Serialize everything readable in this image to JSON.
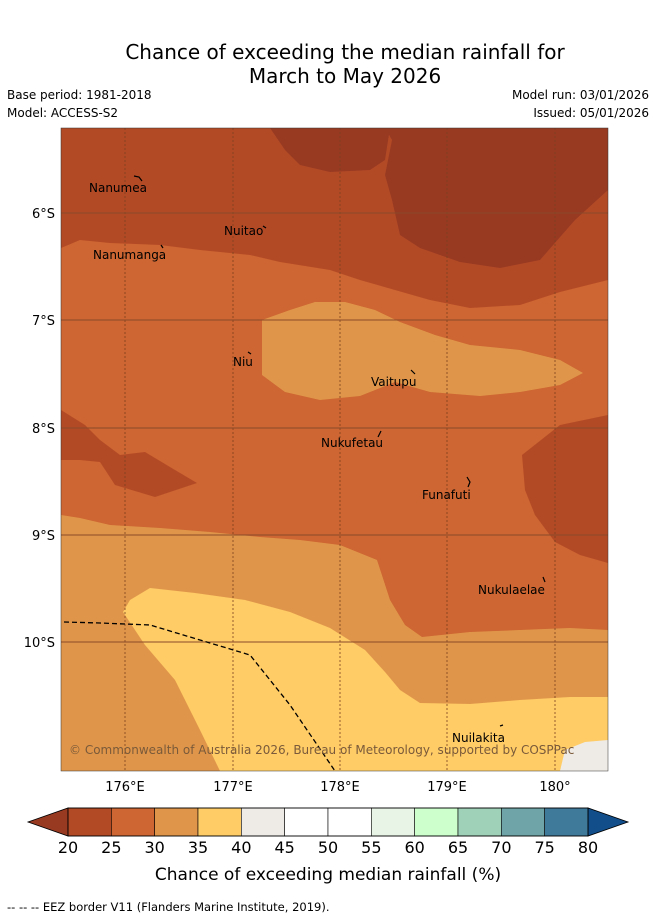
{
  "title": {
    "line1": "Chance of exceeding the median rainfall for",
    "line2": "March to May 2026"
  },
  "meta": {
    "base_period": "Base period: 1981-2018",
    "model": "Model: ACCESS-S2",
    "model_run": "Model run: 03/01/2026",
    "issued": "Issued: 05/01/2026"
  },
  "map": {
    "lat_labels": [
      "6°S",
      "7°S",
      "8°S",
      "9°S",
      "10°S"
    ],
    "lon_labels": [
      "176°E",
      "177°E",
      "178°E",
      "179°E",
      "180°"
    ],
    "places": [
      {
        "name": "Nanumea"
      },
      {
        "name": "Nuitao"
      },
      {
        "name": "Nanumanga"
      },
      {
        "name": "Niu"
      },
      {
        "name": "Vaitupu"
      },
      {
        "name": "Nukufetau"
      },
      {
        "name": "Funafuti"
      },
      {
        "name": "Nukulaelae"
      },
      {
        "name": "Nuilakita"
      }
    ],
    "copyright": "© Commonwealth of Australia 2026, Bureau of Meteorology, supported by COSPPac"
  },
  "colorbar": {
    "ticks": [
      "20",
      "25",
      "30",
      "35",
      "40",
      "45",
      "50",
      "55",
      "60",
      "65",
      "70",
      "75",
      "80"
    ],
    "colors": [
      "#b34a26",
      "#cd6632",
      "#e0964a",
      "#ffcc66",
      "#eeeae5",
      "#ffffff",
      "#ffffff",
      "#e8f4e6",
      "#ccffcc",
      "#9fd0b8",
      "#6fa5a8",
      "#3f7a9a"
    ],
    "low_color": "#983a22",
    "high_color": "#114e8a",
    "label": "Chance of exceeding median rainfall (%)"
  },
  "colors": {
    "c20": "#983a22",
    "c25": "#b34a26",
    "c30": "#cd6632",
    "c35": "#e0964a",
    "c40": "#ffcc66",
    "c45": "#eeeae5"
  },
  "footer": "-- -- -- EEZ border V11 (Flanders Marine Institute, 2019)."
}
